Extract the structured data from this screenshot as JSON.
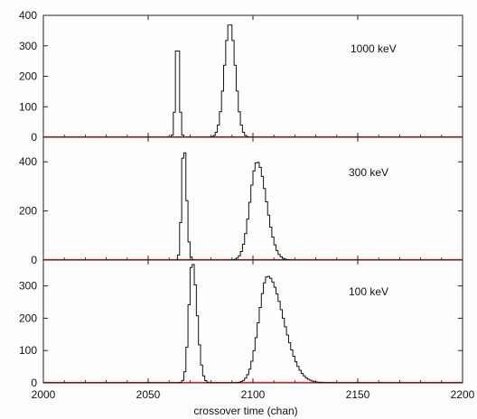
{
  "chart_data": {
    "type": "step-histogram",
    "xlabel": "crossover time (chan)",
    "xlim": [
      2000,
      2200
    ],
    "x_ticks": [
      2000,
      2050,
      2100,
      2150,
      2200
    ],
    "x_tick_labels": [
      "2000",
      "2050",
      "2100",
      "2150",
      "2200"
    ],
    "baseline_color": "#e02020",
    "line_color": "#111111",
    "panels": [
      {
        "label": "1000 keV",
        "ylim": [
          0,
          400
        ],
        "y_ticks": [
          0,
          100,
          200,
          300,
          400
        ],
        "peaks": [
          {
            "center": 2064,
            "amplitude": 330,
            "sigma_left": 0.9,
            "sigma_right": 0.9
          },
          {
            "center": 2089,
            "amplitude": 375,
            "sigma_left": 2.6,
            "sigma_right": 2.6
          }
        ]
      },
      {
        "label": "300 keV",
        "ylim": [
          0,
          500
        ],
        "y_ticks": [
          0,
          200,
          400
        ],
        "peaks": [
          {
            "center": 2067,
            "amplitude": 470,
            "sigma_left": 1.0,
            "sigma_right": 1.3
          },
          {
            "center": 2102,
            "amplitude": 400,
            "sigma_left": 3.4,
            "sigma_right": 4.4
          }
        ]
      },
      {
        "label": "100 keV",
        "ylim": [
          0,
          380
        ],
        "y_ticks": [
          0,
          100,
          200,
          300
        ],
        "peaks": [
          {
            "center": 2071,
            "amplitude": 375,
            "sigma_left": 1.6,
            "sigma_right": 2.3
          },
          {
            "center": 2107,
            "amplitude": 330,
            "sigma_left": 4.2,
            "sigma_right": 7.5
          }
        ]
      }
    ]
  }
}
